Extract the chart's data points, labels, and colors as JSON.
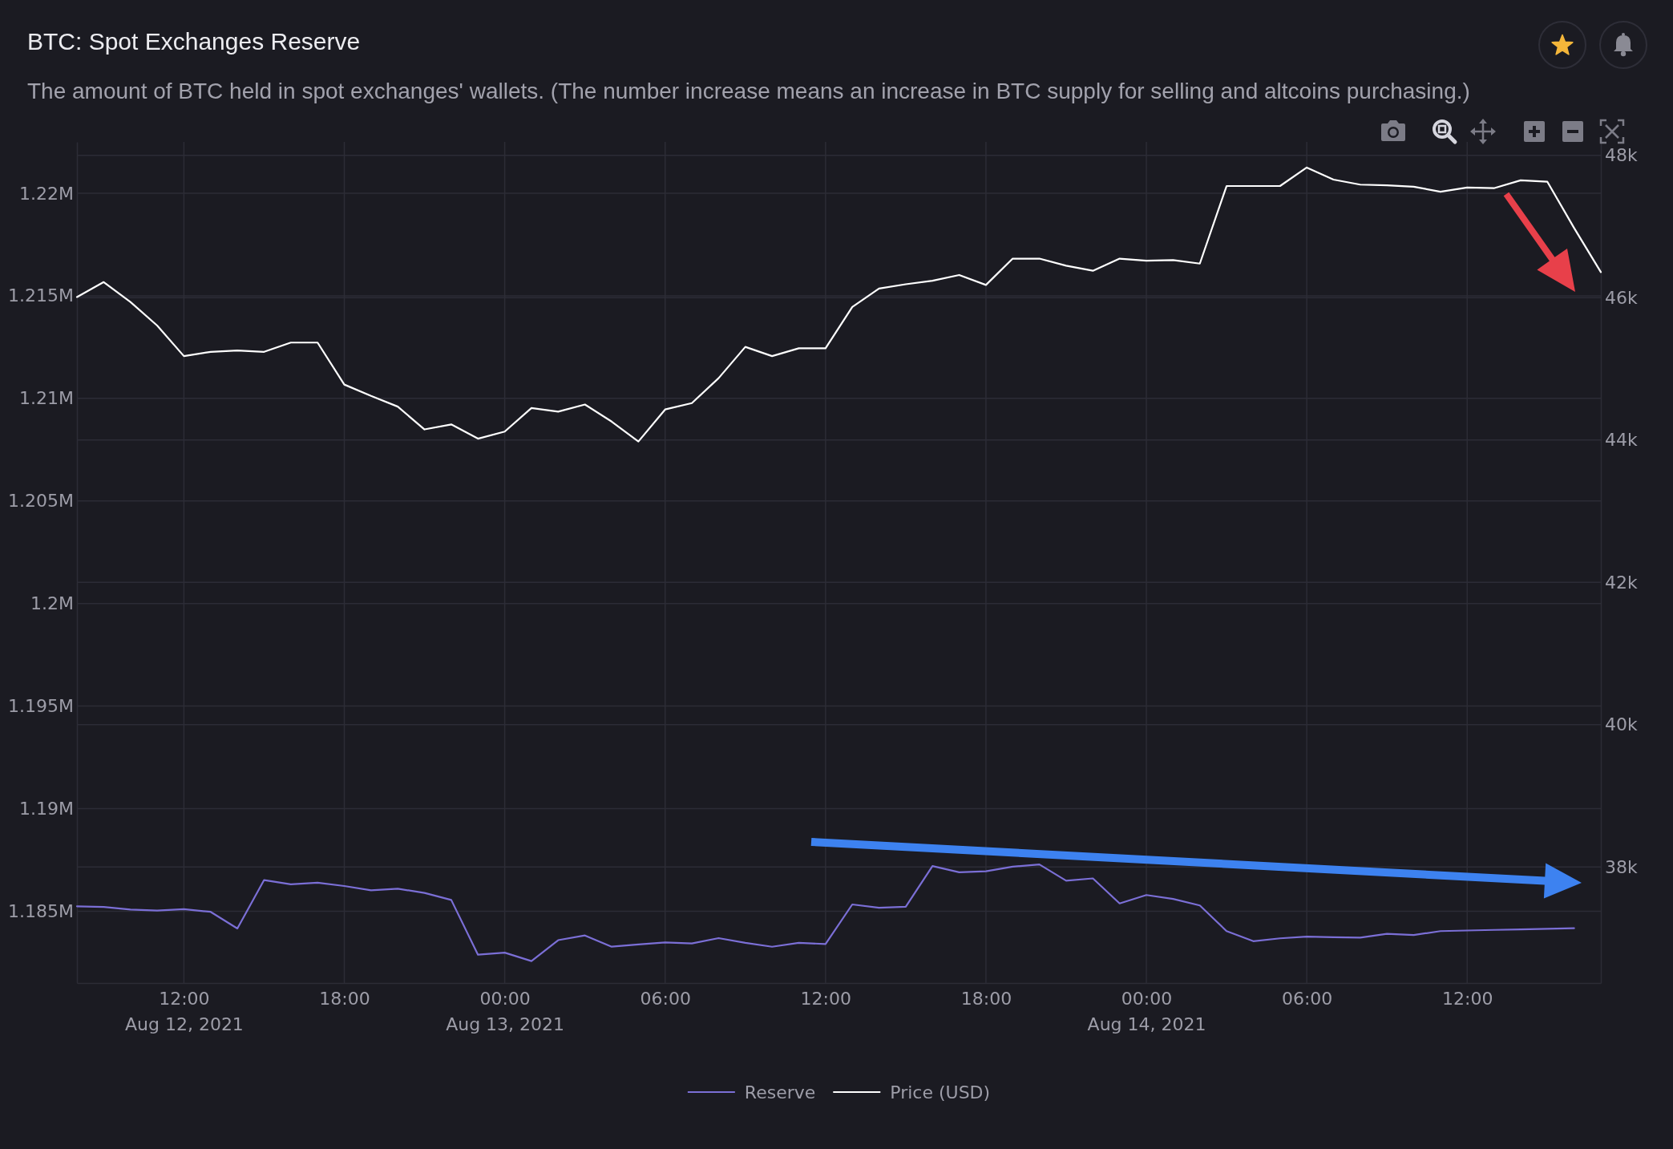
{
  "chart_data": {
    "type": "line",
    "title": "BTC: Spot Exchanges Reserve",
    "subtitle": "The amount of BTC held in spot exchanges' wallets. (The number increase means an increase in BTC supply for selling and altcoins purchasing.)",
    "x": [
      "2021-08-12T08:00",
      "2021-08-12T09:00",
      "2021-08-12T10:00",
      "2021-08-12T11:00",
      "2021-08-12T12:00",
      "2021-08-12T13:00",
      "2021-08-12T14:00",
      "2021-08-12T15:00",
      "2021-08-12T16:00",
      "2021-08-12T17:00",
      "2021-08-12T18:00",
      "2021-08-12T19:00",
      "2021-08-12T20:00",
      "2021-08-12T21:00",
      "2021-08-12T22:00",
      "2021-08-12T23:00",
      "2021-08-13T00:00",
      "2021-08-13T01:00",
      "2021-08-13T02:00",
      "2021-08-13T03:00",
      "2021-08-13T04:00",
      "2021-08-13T05:00",
      "2021-08-13T06:00",
      "2021-08-13T07:00",
      "2021-08-13T08:00",
      "2021-08-13T09:00",
      "2021-08-13T10:00",
      "2021-08-13T11:00",
      "2021-08-13T12:00",
      "2021-08-13T13:00",
      "2021-08-13T14:00",
      "2021-08-13T15:00",
      "2021-08-13T16:00",
      "2021-08-13T17:00",
      "2021-08-13T18:00",
      "2021-08-13T19:00",
      "2021-08-13T20:00",
      "2021-08-13T21:00",
      "2021-08-13T22:00",
      "2021-08-13T23:00",
      "2021-08-14T00:00",
      "2021-08-14T01:00",
      "2021-08-14T02:00",
      "2021-08-14T03:00",
      "2021-08-14T04:00",
      "2021-08-14T05:00",
      "2021-08-14T06:00",
      "2021-08-14T07:00",
      "2021-08-14T08:00",
      "2021-08-14T09:00",
      "2021-08-14T10:00",
      "2021-08-14T11:00",
      "2021-08-14T12:00",
      "2021-08-14T13:00",
      "2021-08-14T14:00",
      "2021-08-14T15:00",
      "2021-08-14T16:00",
      "2021-08-14T17:00"
    ],
    "series": [
      {
        "name": "Reserve",
        "color": "#7b6fd6",
        "values": [
          1185240,
          1185210,
          1185080,
          1185030,
          1185100,
          1184970,
          1184160,
          1186520,
          1186310,
          1186390,
          1186230,
          1186020,
          1186100,
          1185890,
          1185550,
          1182880,
          1182980,
          1182570,
          1183590,
          1183820,
          1183270,
          1183380,
          1183480,
          1183430,
          1183690,
          1183460,
          1183270,
          1183460,
          1183400,
          1185330,
          1185170,
          1185220,
          1187200,
          1186900,
          1186950,
          1187170,
          1187280,
          1186490,
          1186600,
          1185380,
          1185790,
          1185600,
          1185280,
          1184030,
          1183540,
          1183680,
          1183760,
          1183730,
          1183710,
          1183900,
          1183840,
          1184030,
          1184060,
          1184090,
          1184110,
          1184140,
          1184170,
          null
        ]
      },
      {
        "name": "Price (USD)",
        "color": "#ffffff",
        "axis": "y2",
        "values": [
          46010,
          46220,
          45940,
          45610,
          45180,
          45240,
          45260,
          45240,
          45370,
          45370,
          44780,
          44620,
          44470,
          44150,
          44220,
          44020,
          44120,
          44450,
          44400,
          44500,
          44260,
          43980,
          44430,
          44520,
          44870,
          45310,
          45180,
          45290,
          45290,
          45870,
          46130,
          46190,
          46240,
          46320,
          46180,
          46550,
          46550,
          46450,
          46380,
          46550,
          46520,
          46530,
          46480,
          47570,
          47570,
          47570,
          47830,
          47660,
          47590,
          47580,
          47560,
          47490,
          47550,
          47540,
          47650,
          47630,
          46980,
          46360
        ]
      }
    ],
    "xlim": [
      "2021-08-12T08:00",
      "2021-08-14T17:00"
    ],
    "xticks": [
      {
        "value": "2021-08-12T12:00",
        "label": "12:00\nAug 12, 2021"
      },
      {
        "value": "2021-08-12T18:00",
        "label": "18:00"
      },
      {
        "value": "2021-08-13T00:00",
        "label": "00:00\nAug 13, 2021"
      },
      {
        "value": "2021-08-13T06:00",
        "label": "06:00"
      },
      {
        "value": "2021-08-13T12:00",
        "label": "12:00"
      },
      {
        "value": "2021-08-13T18:00",
        "label": "18:00"
      },
      {
        "value": "2021-08-14T00:00",
        "label": "00:00\nAug 14, 2021"
      },
      {
        "value": "2021-08-14T06:00",
        "label": "06:00"
      },
      {
        "value": "2021-08-14T12:00",
        "label": "12:00"
      }
    ],
    "ylim": [
      1181500,
      1222500
    ],
    "yticks": [
      {
        "value": 1185000,
        "label": "1.185M"
      },
      {
        "value": 1190000,
        "label": "1.19M"
      },
      {
        "value": 1195000,
        "label": "1.195M"
      },
      {
        "value": 1200000,
        "label": "1.2M"
      },
      {
        "value": 1205000,
        "label": "1.205M"
      },
      {
        "value": 1210000,
        "label": "1.21M"
      },
      {
        "value": 1215000,
        "label": "1.215M"
      },
      {
        "value": 1220000,
        "label": "1.22M"
      }
    ],
    "y2lim": [
      36370,
      48190
    ],
    "y2ticks": [
      {
        "value": 38000,
        "label": "38k"
      },
      {
        "value": 40000,
        "label": "40k"
      },
      {
        "value": 42000,
        "label": "42k"
      },
      {
        "value": 44000,
        "label": "44k"
      },
      {
        "value": 46000,
        "label": "46k"
      },
      {
        "value": 48000,
        "label": "48k"
      }
    ],
    "grid": true,
    "legend": "bottom"
  }
}
